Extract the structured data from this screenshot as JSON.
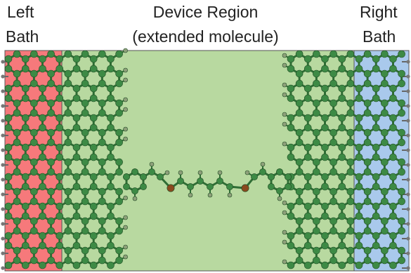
{
  "labels": {
    "left_line1": "Left",
    "left_line2": "Bath",
    "device_line1": "Device Region",
    "device_line2": "(extended molecule)",
    "right_line1": "Right",
    "right_line2": "Bath"
  },
  "colors": {
    "left_bath": "#f6797b",
    "device_region": "#b8d9a0",
    "right_bath": "#a9c9ec",
    "carbon": "#3d8a45",
    "hydrogen": "#8ea07a",
    "bond": "#2f6e35",
    "hetero_atom": "#8a4a1e",
    "lead_bond": "#666666"
  }
}
